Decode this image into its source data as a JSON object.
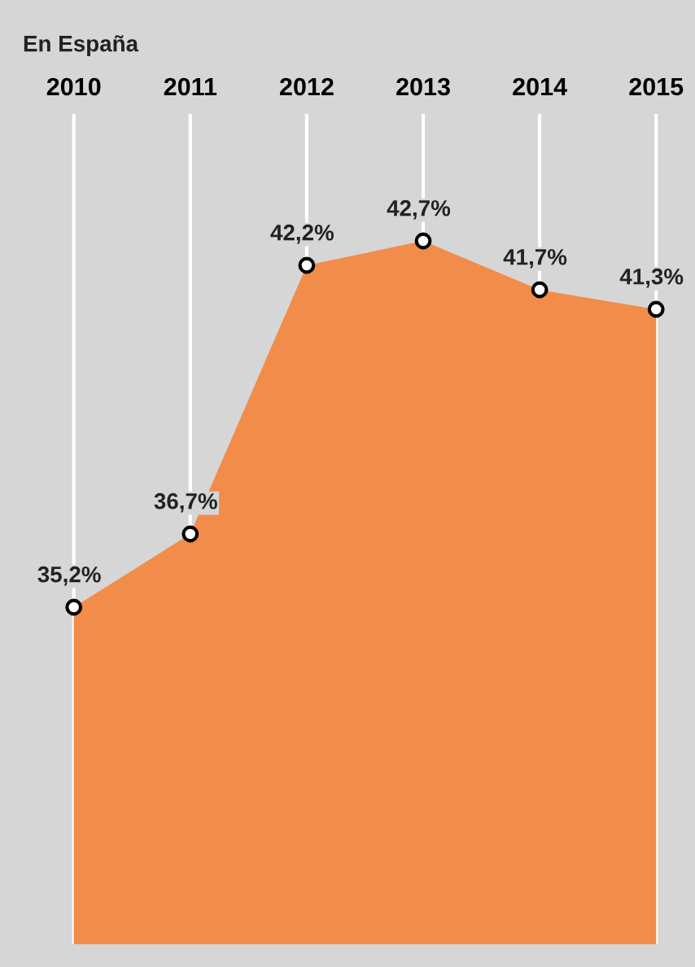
{
  "chart_data": {
    "type": "area",
    "title": "En España",
    "categories": [
      "2010",
      "2011",
      "2012",
      "2013",
      "2014",
      "2015"
    ],
    "series": [
      {
        "color": "#f28c4b",
        "values": [
          35.2,
          36.7,
          42.2,
          42.7,
          41.7,
          41.3
        ],
        "value_labels": [
          "35,2%",
          "36,7%",
          "42,2%",
          "42,7%",
          "41,7%",
          "41,3%"
        ]
      }
    ],
    "ylim": [
      28.3,
      45.3
    ],
    "grid": "x",
    "marker": "circle",
    "tick_labels": "x"
  }
}
